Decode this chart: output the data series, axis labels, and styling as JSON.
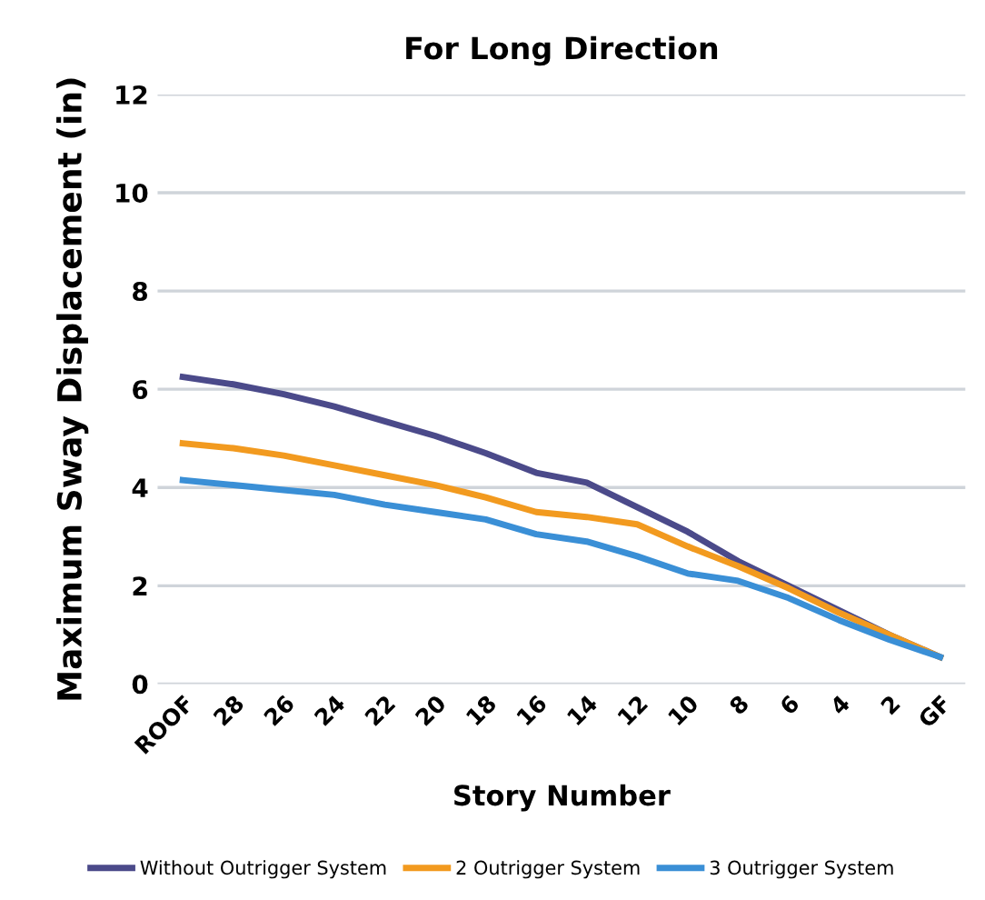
{
  "chart_data": {
    "type": "line",
    "title": "For Long Direction",
    "xlabel": "Story Number",
    "ylabel": "Maximum Sway Displacement (in)",
    "categories": [
      "ROOF",
      "28",
      "26",
      "24",
      "22",
      "20",
      "18",
      "16",
      "14",
      "12",
      "10",
      "8",
      "6",
      "4",
      "2",
      "GF"
    ],
    "series": [
      {
        "name": "Without Outrigger System",
        "color": "#4b4a8a",
        "values": [
          6.25,
          6.1,
          5.9,
          5.65,
          5.35,
          5.05,
          4.7,
          4.3,
          4.1,
          3.6,
          3.1,
          2.5,
          2.0,
          1.5,
          1.0,
          0.55
        ]
      },
      {
        "name": "2 Outrigger System",
        "color": "#f29a1f",
        "values": [
          4.9,
          4.8,
          4.65,
          4.45,
          4.25,
          4.05,
          3.8,
          3.5,
          3.4,
          3.25,
          2.8,
          2.4,
          1.95,
          1.45,
          1.0,
          0.55
        ]
      },
      {
        "name": "3 Outrigger System",
        "color": "#3a8fd6",
        "values": [
          4.15,
          4.05,
          3.95,
          3.85,
          3.65,
          3.5,
          3.35,
          3.05,
          2.9,
          2.6,
          2.25,
          2.1,
          1.75,
          1.3,
          0.9,
          0.55
        ]
      }
    ],
    "ylim": [
      0,
      12
    ],
    "yticks": [
      0,
      2,
      4,
      6,
      8,
      10,
      12
    ],
    "grid": "y",
    "legend": "bottom",
    "marker": "none",
    "line_style": "solid"
  }
}
